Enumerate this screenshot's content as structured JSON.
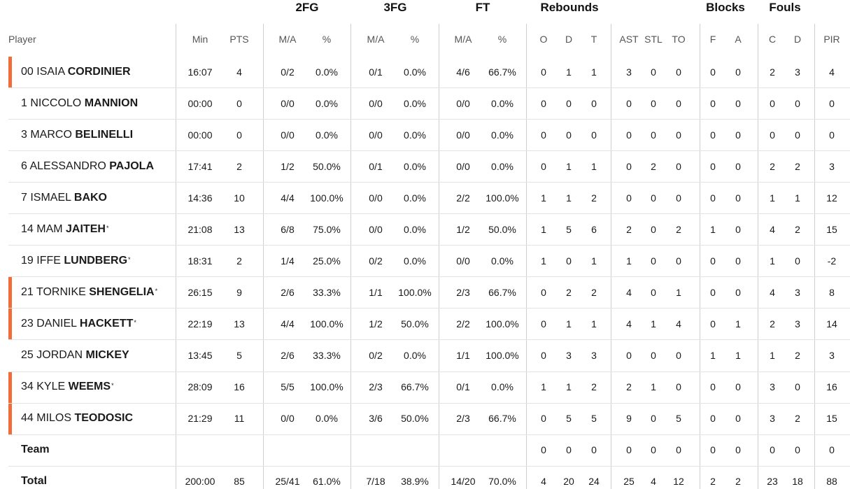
{
  "groups": [
    "2FG",
    "3FG",
    "FT",
    "Rebounds",
    "Blocks",
    "Fouls"
  ],
  "columns": [
    "Player",
    "Min",
    "PTS",
    "M/A",
    "%",
    "M/A",
    "%",
    "M/A",
    "%",
    "O",
    "D",
    "T",
    "AST",
    "STL",
    "TO",
    "F",
    "A",
    "C",
    "D",
    "PIR"
  ],
  "accent_color": "#f26b3a",
  "players": [
    {
      "num": "00",
      "first": "ISAIA",
      "last": "CORDINIER",
      "star": false,
      "accent": true,
      "stats": [
        "16:07",
        "4",
        "0/2",
        "0.0%",
        "0/1",
        "0.0%",
        "4/6",
        "66.7%",
        "0",
        "1",
        "1",
        "3",
        "0",
        "0",
        "0",
        "0",
        "2",
        "3",
        "4"
      ]
    },
    {
      "num": "1",
      "first": "NICCOLO",
      "last": "MANNION",
      "star": false,
      "accent": false,
      "stats": [
        "00:00",
        "0",
        "0/0",
        "0.0%",
        "0/0",
        "0.0%",
        "0/0",
        "0.0%",
        "0",
        "0",
        "0",
        "0",
        "0",
        "0",
        "0",
        "0",
        "0",
        "0",
        "0"
      ]
    },
    {
      "num": "3",
      "first": "MARCO",
      "last": "BELINELLI",
      "star": false,
      "accent": false,
      "stats": [
        "00:00",
        "0",
        "0/0",
        "0.0%",
        "0/0",
        "0.0%",
        "0/0",
        "0.0%",
        "0",
        "0",
        "0",
        "0",
        "0",
        "0",
        "0",
        "0",
        "0",
        "0",
        "0"
      ]
    },
    {
      "num": "6",
      "first": "ALESSANDRO",
      "last": "PAJOLA",
      "star": false,
      "accent": false,
      "stats": [
        "17:41",
        "2",
        "1/2",
        "50.0%",
        "0/1",
        "0.0%",
        "0/0",
        "0.0%",
        "0",
        "1",
        "1",
        "0",
        "2",
        "0",
        "0",
        "0",
        "2",
        "2",
        "3"
      ]
    },
    {
      "num": "7",
      "first": "ISMAEL",
      "last": "BAKO",
      "star": false,
      "accent": false,
      "stats": [
        "14:36",
        "10",
        "4/4",
        "100.0%",
        "0/0",
        "0.0%",
        "2/2",
        "100.0%",
        "1",
        "1",
        "2",
        "0",
        "0",
        "0",
        "0",
        "0",
        "1",
        "1",
        "12"
      ]
    },
    {
      "num": "14",
      "first": "MAM",
      "last": "JAITEH",
      "star": true,
      "accent": false,
      "stats": [
        "21:08",
        "13",
        "6/8",
        "75.0%",
        "0/0",
        "0.0%",
        "1/2",
        "50.0%",
        "1",
        "5",
        "6",
        "2",
        "0",
        "2",
        "1",
        "0",
        "4",
        "2",
        "15"
      ]
    },
    {
      "num": "19",
      "first": "IFFE",
      "last": "LUNDBERG",
      "star": true,
      "accent": false,
      "stats": [
        "18:31",
        "2",
        "1/4",
        "25.0%",
        "0/2",
        "0.0%",
        "0/0",
        "0.0%",
        "1",
        "0",
        "1",
        "1",
        "0",
        "0",
        "0",
        "0",
        "1",
        "0",
        "-2"
      ]
    },
    {
      "num": "21",
      "first": "TORNIKE",
      "last": "SHENGELIA",
      "star": true,
      "accent": true,
      "stats": [
        "26:15",
        "9",
        "2/6",
        "33.3%",
        "1/1",
        "100.0%",
        "2/3",
        "66.7%",
        "0",
        "2",
        "2",
        "4",
        "0",
        "1",
        "0",
        "0",
        "4",
        "3",
        "8"
      ]
    },
    {
      "num": "23",
      "first": "DANIEL",
      "last": "HACKETT",
      "star": true,
      "accent": true,
      "stats": [
        "22:19",
        "13",
        "4/4",
        "100.0%",
        "1/2",
        "50.0%",
        "2/2",
        "100.0%",
        "0",
        "1",
        "1",
        "4",
        "1",
        "4",
        "0",
        "1",
        "2",
        "3",
        "14"
      ]
    },
    {
      "num": "25",
      "first": "JORDAN",
      "last": "MICKEY",
      "star": false,
      "accent": false,
      "stats": [
        "13:45",
        "5",
        "2/6",
        "33.3%",
        "0/2",
        "0.0%",
        "1/1",
        "100.0%",
        "0",
        "3",
        "3",
        "0",
        "0",
        "0",
        "1",
        "1",
        "1",
        "2",
        "3"
      ]
    },
    {
      "num": "34",
      "first": "KYLE",
      "last": "WEEMS",
      "star": true,
      "accent": true,
      "stats": [
        "28:09",
        "16",
        "5/5",
        "100.0%",
        "2/3",
        "66.7%",
        "0/1",
        "0.0%",
        "1",
        "1",
        "2",
        "2",
        "1",
        "0",
        "0",
        "0",
        "3",
        "0",
        "16"
      ]
    },
    {
      "num": "44",
      "first": "MILOS",
      "last": "TEODOSIC",
      "star": false,
      "accent": true,
      "stats": [
        "21:29",
        "11",
        "0/0",
        "0.0%",
        "3/6",
        "50.0%",
        "2/3",
        "66.7%",
        "0",
        "5",
        "5",
        "9",
        "0",
        "5",
        "0",
        "0",
        "3",
        "2",
        "15"
      ]
    }
  ],
  "team": {
    "label": "Team",
    "stats": [
      "",
      "",
      "",
      "",
      "",
      "",
      "",
      "",
      "0",
      "0",
      "0",
      "0",
      "0",
      "0",
      "0",
      "0",
      "0",
      "0",
      "0"
    ]
  },
  "total": {
    "label": "Total",
    "stats": [
      "200:00",
      "85",
      "25/41",
      "61.0%",
      "7/18",
      "38.9%",
      "14/20",
      "70.0%",
      "4",
      "20",
      "24",
      "25",
      "4",
      "12",
      "2",
      "2",
      "23",
      "18",
      "88"
    ]
  }
}
